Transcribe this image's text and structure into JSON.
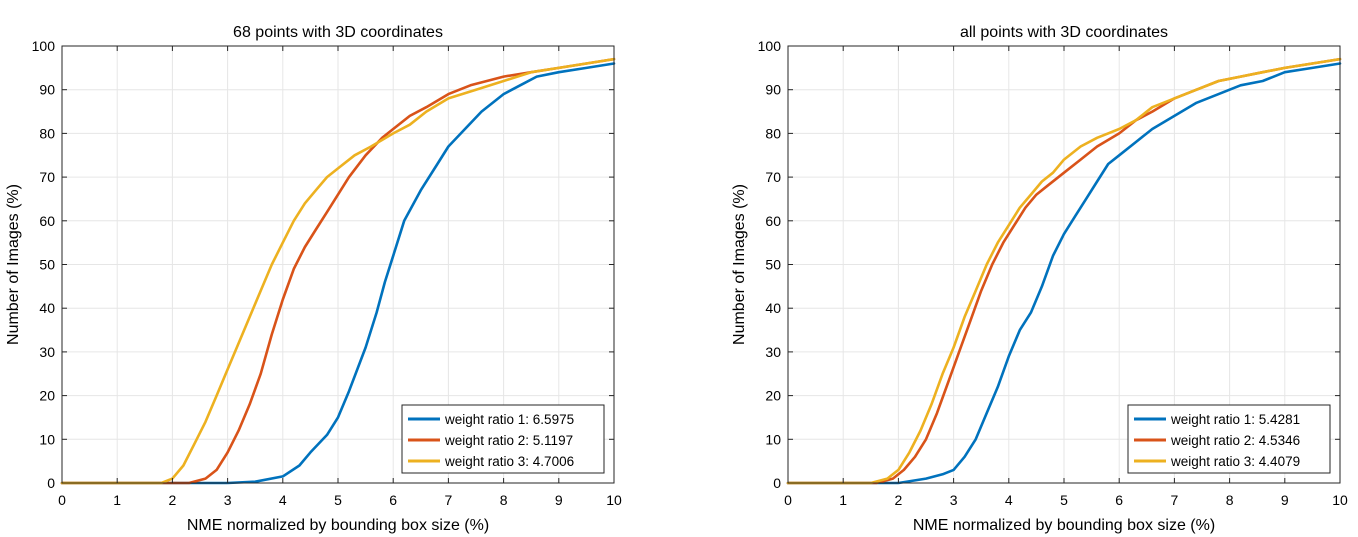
{
  "chart_data": [
    {
      "type": "line",
      "title": "68 points with 3D coordinates",
      "xlabel": "NME normalized by bounding box size (%)",
      "ylabel": "Number of Images (%)",
      "xlim": [
        0,
        10
      ],
      "ylim": [
        0,
        100
      ],
      "xticks": [
        "0",
        "1",
        "2",
        "3",
        "4",
        "5",
        "6",
        "7",
        "8",
        "9",
        "10"
      ],
      "yticks": [
        "0",
        "10",
        "20",
        "30",
        "40",
        "50",
        "60",
        "70",
        "80",
        "90",
        "100"
      ],
      "grid": true,
      "legend_position": "bottom-right",
      "series": [
        {
          "name": "weight ratio 1: 6.5975",
          "color": "#0072BD",
          "x": [
            0,
            3.0,
            3.5,
            4.0,
            4.3,
            4.5,
            4.8,
            5.0,
            5.2,
            5.5,
            5.7,
            5.85,
            6.0,
            6.2,
            6.5,
            6.8,
            7.0,
            7.3,
            7.6,
            8.0,
            8.3,
            8.6,
            9.0,
            9.5,
            10.0
          ],
          "y": [
            0,
            0,
            0.3,
            1.5,
            4,
            7,
            11,
            15,
            21,
            31,
            39,
            46,
            52,
            60,
            67,
            73,
            77,
            81,
            85,
            89,
            91,
            93,
            94,
            95,
            96
          ]
        },
        {
          "name": "weight ratio 2: 5.1197",
          "color": "#D95319",
          "x": [
            0,
            2.3,
            2.6,
            2.8,
            3.0,
            3.2,
            3.4,
            3.6,
            3.8,
            4.0,
            4.2,
            4.4,
            4.6,
            4.8,
            5.0,
            5.2,
            5.5,
            5.8,
            6.0,
            6.3,
            6.6,
            7.0,
            7.4,
            8.0,
            8.5,
            9.0,
            9.5,
            10.0
          ],
          "y": [
            0,
            0,
            1,
            3,
            7,
            12,
            18,
            25,
            34,
            42,
            49,
            54,
            58,
            62,
            66,
            70,
            75,
            79,
            81,
            84,
            86,
            89,
            91,
            93,
            94,
            95,
            96,
            97
          ]
        },
        {
          "name": "weight ratio 3: 4.7006",
          "color": "#EDB120",
          "x": [
            0,
            1.8,
            2.0,
            2.2,
            2.4,
            2.6,
            2.8,
            3.0,
            3.2,
            3.4,
            3.6,
            3.8,
            4.0,
            4.2,
            4.4,
            4.6,
            4.8,
            5.0,
            5.3,
            5.6,
            6.0,
            6.3,
            6.6,
            7.0,
            7.5,
            8.0,
            8.5,
            9.0,
            9.5,
            10.0
          ],
          "y": [
            0,
            0,
            1,
            4,
            9,
            14,
            20,
            26,
            32,
            38,
            44,
            50,
            55,
            60,
            64,
            67,
            70,
            72,
            75,
            77,
            80,
            82,
            85,
            88,
            90,
            92,
            94,
            95,
            96,
            97
          ]
        }
      ]
    },
    {
      "type": "line",
      "title": "all points with 3D coordinates",
      "xlabel": "NME normalized by bounding box size (%)",
      "ylabel": "Number of Images (%)",
      "xlim": [
        0,
        10
      ],
      "ylim": [
        0,
        100
      ],
      "xticks": [
        "0",
        "1",
        "2",
        "3",
        "4",
        "5",
        "6",
        "7",
        "8",
        "9",
        "10"
      ],
      "yticks": [
        "0",
        "10",
        "20",
        "30",
        "40",
        "50",
        "60",
        "70",
        "80",
        "90",
        "100"
      ],
      "grid": true,
      "legend_position": "bottom-right",
      "series": [
        {
          "name": "weight ratio 1: 5.4281",
          "color": "#0072BD",
          "x": [
            0,
            2.0,
            2.5,
            2.8,
            3.0,
            3.2,
            3.4,
            3.6,
            3.8,
            4.0,
            4.2,
            4.4,
            4.6,
            4.8,
            5.0,
            5.2,
            5.4,
            5.6,
            5.8,
            6.0,
            6.3,
            6.6,
            7.0,
            7.4,
            7.8,
            8.2,
            8.6,
            9.0,
            9.5,
            10.0
          ],
          "y": [
            0,
            0,
            1,
            2,
            3,
            6,
            10,
            16,
            22,
            29,
            35,
            39,
            45,
            52,
            57,
            61,
            65,
            69,
            73,
            75,
            78,
            81,
            84,
            87,
            89,
            91,
            92,
            94,
            95,
            96
          ]
        },
        {
          "name": "weight ratio 2: 4.5346",
          "color": "#D95319",
          "x": [
            0,
            1.6,
            1.9,
            2.1,
            2.3,
            2.5,
            2.7,
            2.9,
            3.1,
            3.3,
            3.5,
            3.7,
            3.9,
            4.1,
            4.3,
            4.5,
            4.7,
            5.0,
            5.3,
            5.6,
            6.0,
            6.3,
            6.6,
            7.0,
            7.4,
            7.8,
            8.2,
            8.6,
            9.0,
            9.5,
            10.0
          ],
          "y": [
            0,
            0,
            1,
            3,
            6,
            10,
            16,
            23,
            30,
            37,
            44,
            50,
            55,
            59,
            63,
            66,
            68,
            71,
            74,
            77,
            80,
            83,
            85,
            88,
            90,
            92,
            93,
            94,
            95,
            96,
            97
          ]
        },
        {
          "name": "weight ratio 3: 4.4079",
          "color": "#EDB120",
          "x": [
            0,
            1.5,
            1.8,
            2.0,
            2.2,
            2.4,
            2.6,
            2.8,
            3.0,
            3.2,
            3.4,
            3.6,
            3.8,
            4.0,
            4.2,
            4.4,
            4.6,
            4.8,
            5.0,
            5.3,
            5.6,
            6.0,
            6.3,
            6.6,
            7.0,
            7.4,
            7.8,
            8.2,
            8.6,
            9.0,
            9.5,
            10.0
          ],
          "y": [
            0,
            0,
            1,
            3,
            7,
            12,
            18,
            25,
            31,
            38,
            44,
            50,
            55,
            59,
            63,
            66,
            69,
            71,
            74,
            77,
            79,
            81,
            83,
            86,
            88,
            90,
            92,
            93,
            94,
            95,
            96,
            97
          ]
        }
      ]
    }
  ]
}
